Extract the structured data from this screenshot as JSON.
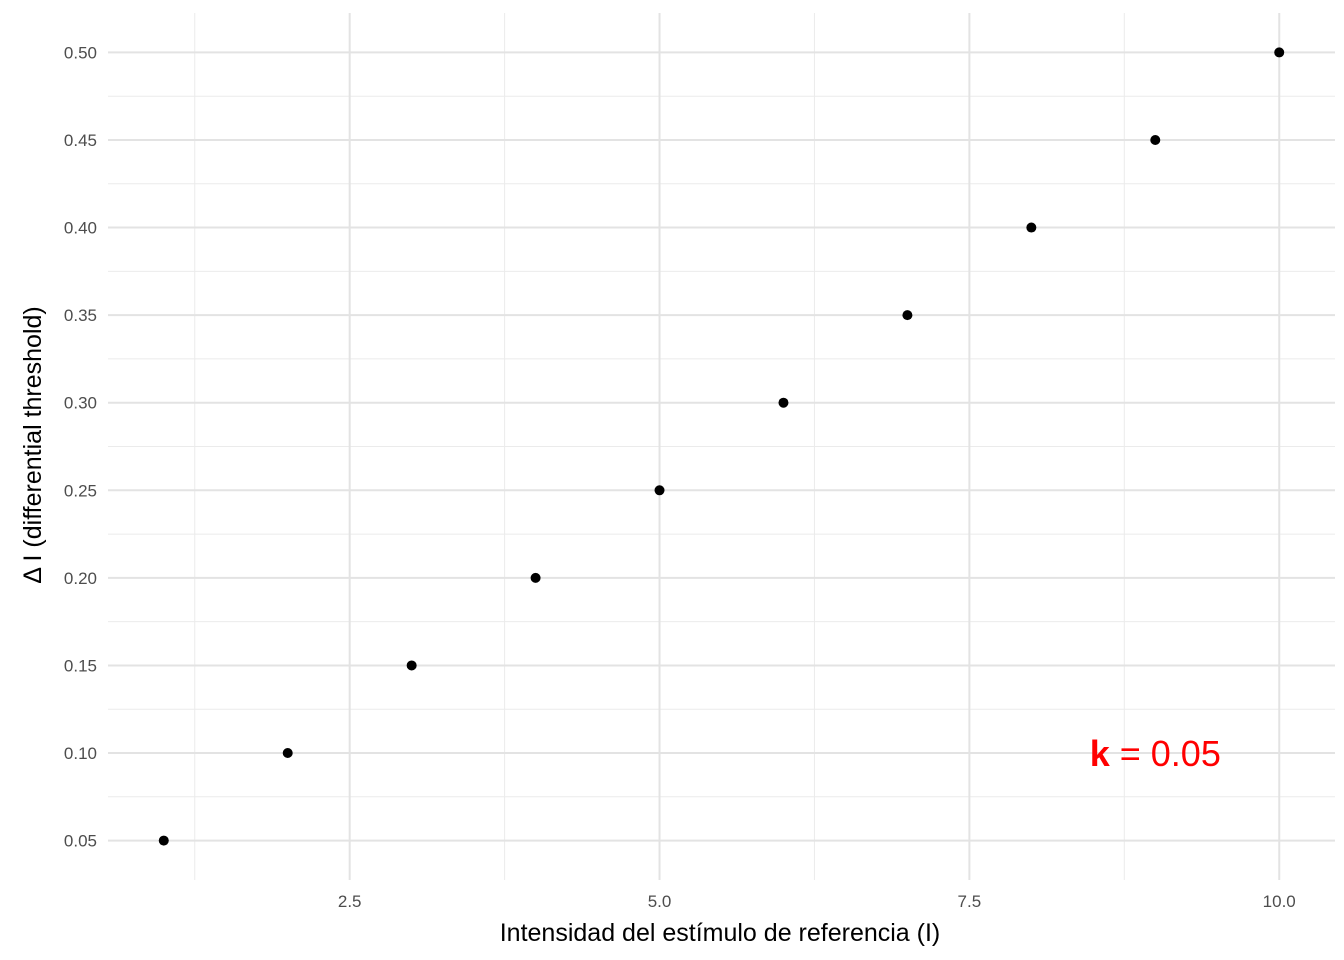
{
  "chart_data": {
    "type": "scatter",
    "title": "",
    "xlabel": "Intensidad del estímulo de referencia (I)",
    "ylabel": "Δ I (differential threshold)",
    "x": [
      1,
      2,
      3,
      4,
      5,
      6,
      7,
      8,
      9,
      10
    ],
    "y": [
      0.05,
      0.1,
      0.15,
      0.2,
      0.25,
      0.3,
      0.35,
      0.4,
      0.45,
      0.5
    ],
    "xlim": [
      0.55,
      10.45
    ],
    "ylim": [
      0.0275,
      0.5225
    ],
    "x_ticks": [
      "2.5",
      "5.0",
      "7.5",
      "10.0"
    ],
    "y_ticks": [
      "0.05",
      "0.10",
      "0.15",
      "0.20",
      "0.25",
      "0.30",
      "0.35",
      "0.40",
      "0.45",
      "0.50"
    ],
    "grid": true,
    "point_color": "#000000",
    "annotation": {
      "symbol": "k",
      "text": " = 0.05",
      "color": "#ff0000",
      "x": 9.0,
      "y": 0.1
    }
  }
}
